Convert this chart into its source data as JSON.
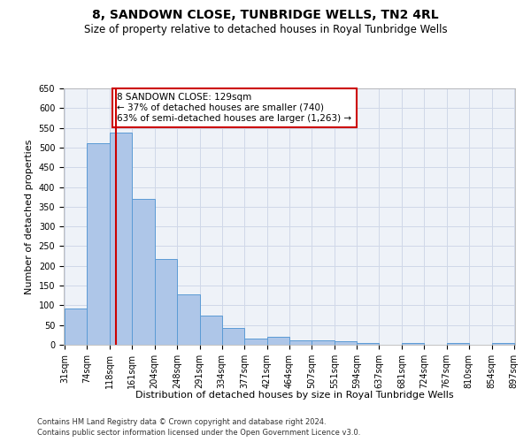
{
  "title1": "8, SANDOWN CLOSE, TUNBRIDGE WELLS, TN2 4RL",
  "title2": "Size of property relative to detached houses in Royal Tunbridge Wells",
  "xlabel": "Distribution of detached houses by size in Royal Tunbridge Wells",
  "ylabel": "Number of detached properties",
  "footnote1": "Contains HM Land Registry data © Crown copyright and database right 2024.",
  "footnote2": "Contains public sector information licensed under the Open Government Licence v3.0.",
  "bar_edges": [
    31,
    74,
    118,
    161,
    204,
    248,
    291,
    334,
    377,
    421,
    464,
    507,
    551,
    594,
    637,
    681,
    724,
    767,
    810,
    854,
    897
  ],
  "bar_heights": [
    93,
    510,
    538,
    369,
    218,
    128,
    73,
    43,
    16,
    20,
    12,
    12,
    9,
    5,
    0,
    5,
    0,
    4,
    0,
    4
  ],
  "bar_color": "#aec6e8",
  "bar_edge_color": "#5b9bd5",
  "property_line_x": 129,
  "annotation_text": "8 SANDOWN CLOSE: 129sqm\n← 37% of detached houses are smaller (740)\n63% of semi-detached houses are larger (1,263) →",
  "annotation_box_color": "#ffffff",
  "annotation_box_edge": "#cc0000",
  "vline_color": "#cc0000",
  "ylim": [
    0,
    650
  ],
  "yticks": [
    0,
    50,
    100,
    150,
    200,
    250,
    300,
    350,
    400,
    450,
    500,
    550,
    600,
    650
  ],
  "grid_color": "#d0d8e8",
  "bg_color": "#eef2f8",
  "title1_fontsize": 10,
  "title2_fontsize": 8.5,
  "xlabel_fontsize": 8,
  "ylabel_fontsize": 8,
  "annot_fontsize": 7.5,
  "tick_fontsize": 7,
  "footnote_fontsize": 6
}
